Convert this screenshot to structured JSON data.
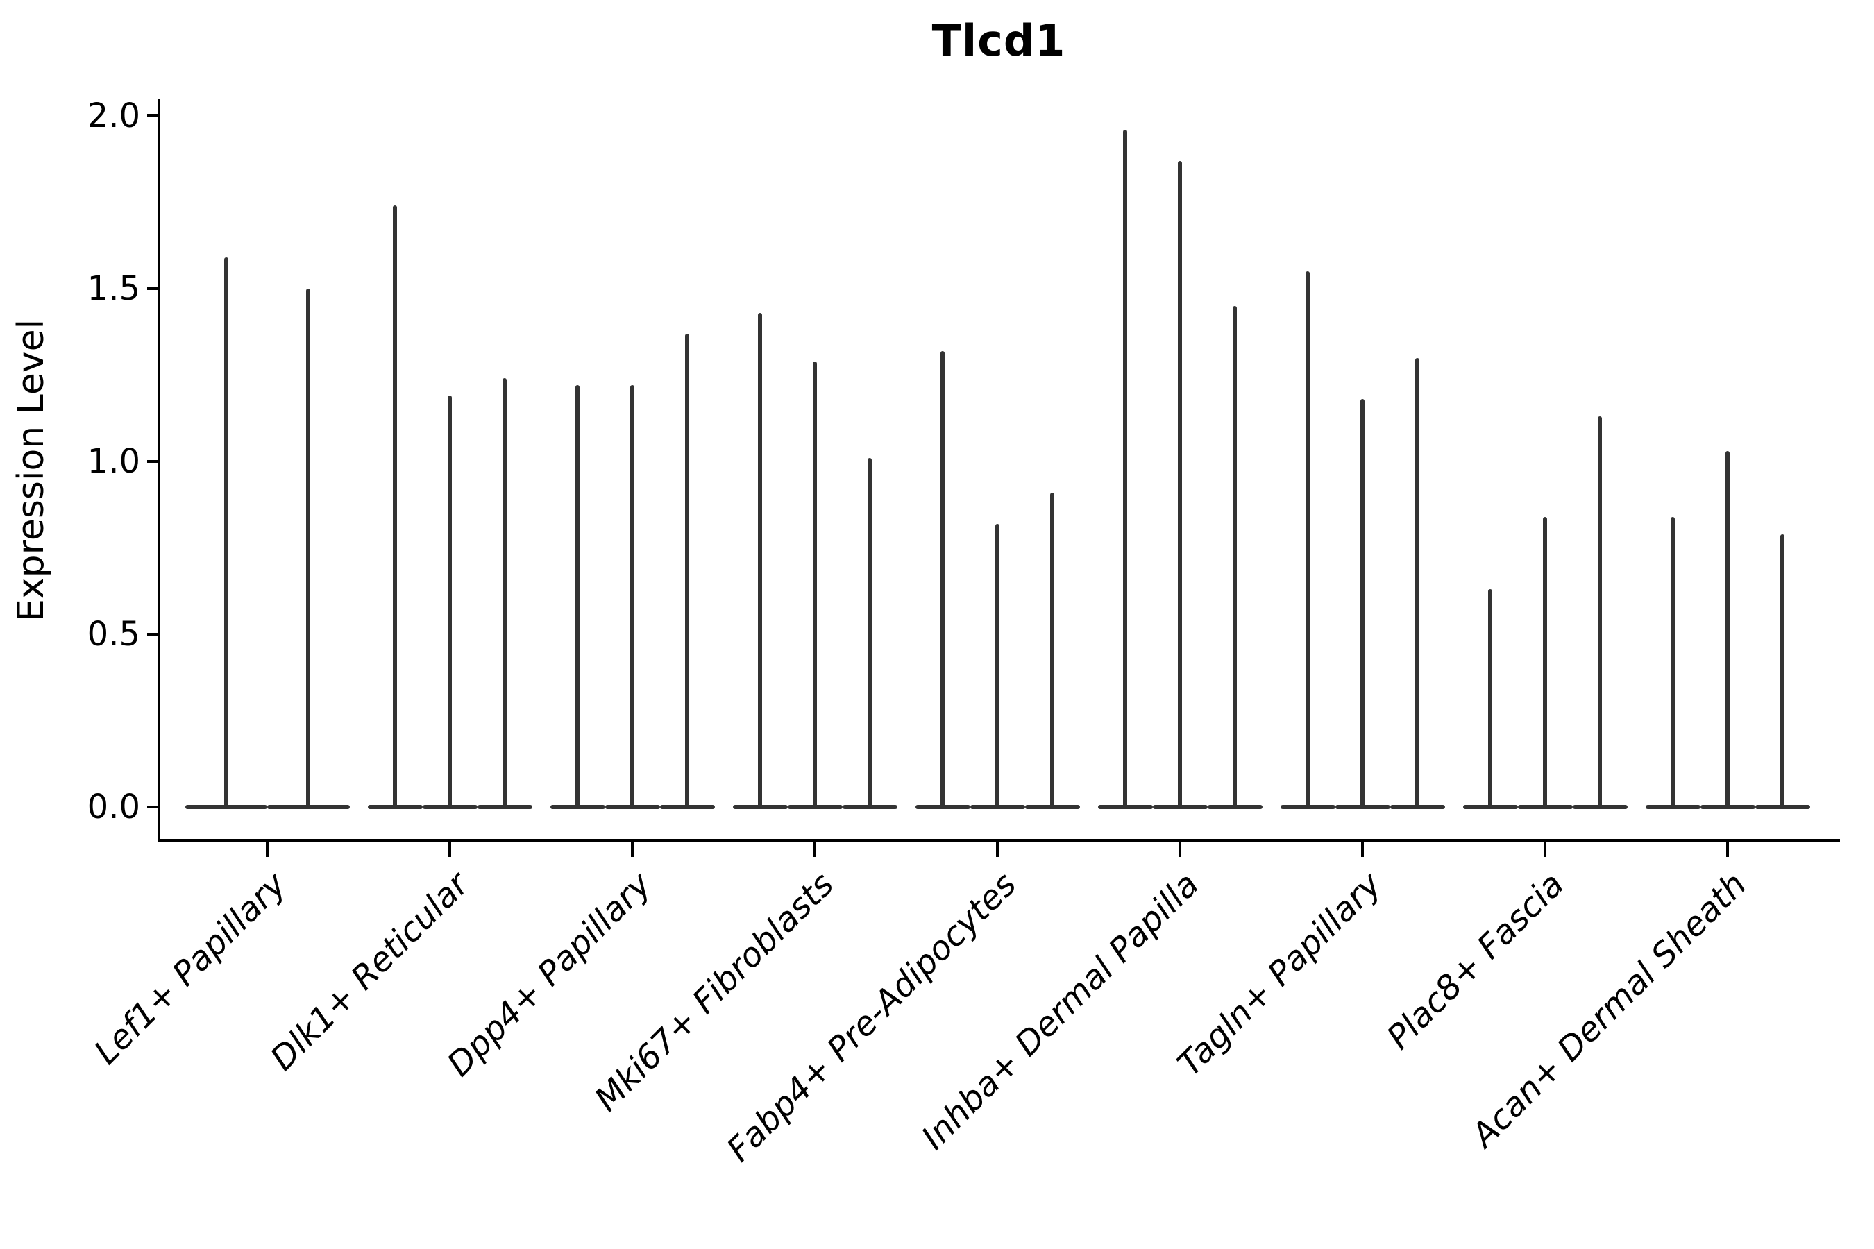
{
  "title": "Tlcd1",
  "y_axis": {
    "label": "Expression Level",
    "tick_labels": [
      "0.0",
      "0.5",
      "1.0",
      "1.5",
      "2.0"
    ],
    "tick_values": [
      0.0,
      0.5,
      1.0,
      1.5,
      2.0
    ]
  },
  "style": {
    "violin_color": "#333333",
    "axis_color": "#000000",
    "background_color": "#ffffff"
  },
  "chart_data": {
    "type": "violin",
    "title": "Tlcd1",
    "xlabel": "",
    "ylabel": "Expression Level",
    "ylim": [
      0.0,
      2.0
    ],
    "yticks": [
      0.0,
      0.5,
      1.0,
      1.5,
      2.0
    ],
    "grid": false,
    "legend": false,
    "description": "Violin plot of Tlcd1 expression; each category shows 2-3 extremely thin violins (split groups) whose mass is concentrated at 0 with a thin spike reaching the maximum expression value.",
    "categories": [
      "Lef1+ Papillary",
      "Dlk1+ Reticular",
      "Dpp4+ Papillary",
      "Mki67+ Fibroblasts",
      "Fabp4+ Pre-Adipocytes",
      "Inhba+ Dermal Papilla",
      "Tagln+ Papillary",
      "Plac8+ Fascia",
      "Acan+ Dermal Sheath"
    ],
    "series": [
      {
        "category": "Lef1+ Papillary",
        "violin_max_values": [
          1.59,
          1.5
        ]
      },
      {
        "category": "Dlk1+ Reticular",
        "violin_max_values": [
          1.74,
          1.19,
          1.24
        ]
      },
      {
        "category": "Dpp4+ Papillary",
        "violin_max_values": [
          1.22,
          1.22,
          1.37
        ]
      },
      {
        "category": "Mki67+ Fibroblasts",
        "violin_max_values": [
          1.43,
          1.29,
          1.01
        ]
      },
      {
        "category": "Fabp4+ Pre-Adipocytes",
        "violin_max_values": [
          1.32,
          0.82,
          0.91
        ]
      },
      {
        "category": "Inhba+ Dermal Papilla",
        "violin_max_values": [
          1.96,
          1.87,
          1.45
        ]
      },
      {
        "category": "Tagln+ Papillary",
        "violin_max_values": [
          1.55,
          1.18,
          1.3
        ]
      },
      {
        "category": "Plac8+ Fascia",
        "violin_max_values": [
          0.63,
          0.84,
          1.13
        ]
      },
      {
        "category": "Acan+ Dermal Sheath",
        "violin_max_values": [
          0.84,
          1.03,
          0.79
        ]
      }
    ]
  }
}
